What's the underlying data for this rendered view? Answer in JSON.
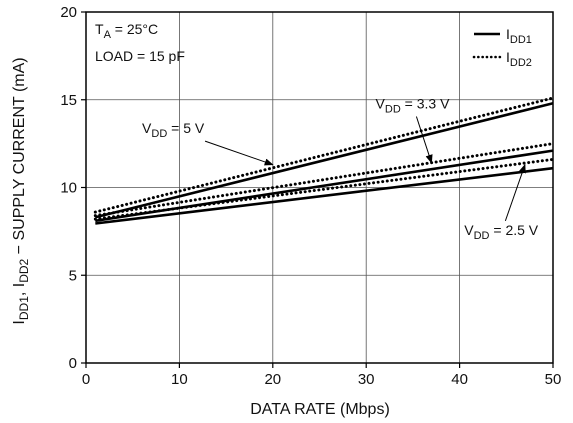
{
  "chart_data": {
    "type": "line",
    "xlabel": "DATA RATE (Mbps)",
    "ylabel": {
      "text": "I_DD1 , I_DD2 − SUPPLY CURRENT (mA)",
      "p1": "I",
      "s1": "DD1",
      "p2": ", I",
      "s2": "DD2",
      "p3": " − SUPPLY CURRENT (mA)"
    },
    "xlim": [
      0,
      50
    ],
    "ylim": [
      0,
      20
    ],
    "xticks": [
      0,
      10,
      20,
      30,
      40,
      50
    ],
    "yticks": [
      0,
      5,
      10,
      15,
      20
    ],
    "grid": true,
    "conditions": {
      "ta_prefix": "T",
      "ta_sub": "A",
      "ta_value": " = 25°C",
      "load": "LOAD = 15 pF"
    },
    "legend": {
      "placement": "top-right",
      "entries": [
        {
          "p": "I",
          "sub": "DD1",
          "style": "solid"
        },
        {
          "p": "I",
          "sub": "DD2",
          "style": "dotted"
        }
      ]
    },
    "series": [
      {
        "group": "VDD = 5 V",
        "style": "solid",
        "x": [
          1,
          50
        ],
        "y": [
          8.3,
          14.8
        ]
      },
      {
        "group": "VDD = 5 V",
        "style": "dotted",
        "x": [
          1,
          50
        ],
        "y": [
          8.6,
          15.1
        ]
      },
      {
        "group": "VDD = 3.3 V",
        "style": "solid",
        "x": [
          1,
          50
        ],
        "y": [
          8.1,
          12.1
        ]
      },
      {
        "group": "VDD = 3.3 V",
        "style": "dotted",
        "x": [
          1,
          50
        ],
        "y": [
          8.4,
          12.5
        ]
      },
      {
        "group": "VDD = 2.5 V",
        "style": "solid",
        "x": [
          1,
          50
        ],
        "y": [
          7.95,
          11.1
        ]
      },
      {
        "group": "VDD = 2.5 V",
        "style": "dotted",
        "x": [
          1,
          50
        ],
        "y": [
          8.2,
          11.6
        ]
      }
    ],
    "annotations": [
      {
        "p": "V",
        "sub": "DD",
        "value": " = 5 V",
        "label_x": 6.0,
        "label_y": 13.1,
        "arrow_to": [
          20,
          11.3
        ]
      },
      {
        "p": "V",
        "sub": "DD",
        "value": " = 3.3 V",
        "label_x": 31.0,
        "label_y": 14.5,
        "arrow_to": [
          37,
          11.4
        ]
      },
      {
        "p": "V",
        "sub": "DD",
        "value": " = 2.5 V",
        "label_x": 40.5,
        "label_y": 7.3,
        "arrow_to": [
          47,
          11.3
        ]
      }
    ]
  }
}
